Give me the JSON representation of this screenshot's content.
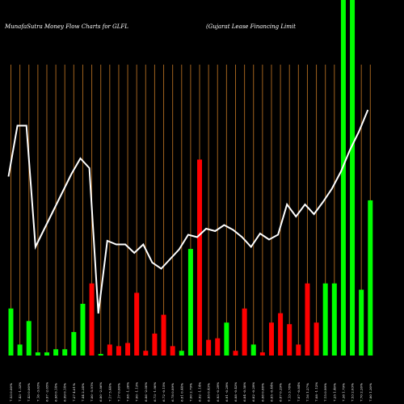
{
  "header": {
    "title_left": "MunafaSutra  Money Flow  Charts for GLFL",
    "title_right": "(Gujarat Lease    Financing Limit"
  },
  "colors": {
    "background": "#000000",
    "gridline": "#a0621e",
    "up": "#00ff00",
    "down": "#ff0000",
    "line": "#ffffff",
    "text": "#ffffff"
  },
  "chart_data": {
    "type": "bar",
    "title": "MunafaSutra  Money Flow  Charts for GLFL",
    "categories": [
      "7.53 0.00%",
      "7.43 -1.33%",
      "7.43 0.00%",
      "7.16 -3.63%",
      "6.97 -2.65%",
      "6.98 0.14%",
      "6.99 0.14%",
      "7.27 4.01%",
      "7.44 2.34%",
      "7.00 -5.91%",
      "6.80 -2.86%",
      "7.17 5.44%",
      "7.17 0.00%",
      "7.08 -1.26%",
      "7.00 -1.13%",
      "6.86 -2.00%",
      "6.73 -1.90%",
      "6.72 -0.15%",
      "6.78 0.89%",
      "6.81 0.44%",
      "7.00 2.79%",
      "6.92 -1.14%",
      "6.95 0.43%",
      "6.93 -0.29%",
      "6.91 -0.29%",
      "6.88 -0.43%",
      "6.84 -0.58%",
      "6.82 -0.29%",
      "6.88 0.88%",
      "6.85 -0.44%",
      "6.87 0.29%",
      "7.13 3.78%",
      "7.07 -0.84%",
      "7.16 1.27%",
      "7.08 -1.12%",
      "7.15 0.99%",
      "7.25 1.40%",
      "7.38 1.79%",
      "7.53 2.03%",
      "7.70 2.26%",
      "7.80 1.30%"
    ],
    "series": [
      {
        "values": [
          30,
          7,
          22,
          2,
          2,
          4,
          4,
          15,
          33,
          46,
          1,
          7,
          6,
          8,
          40,
          3,
          14,
          26,
          6,
          3,
          68,
          125,
          10,
          11,
          21,
          3,
          30,
          7,
          2,
          21,
          27,
          20,
          7,
          46,
          21,
          46,
          46,
          240,
          240,
          42,
          99
        ],
        "direction": [
          "up",
          "up",
          "up",
          "up",
          "up",
          "up",
          "up",
          "up",
          "up",
          "down",
          "up",
          "down",
          "down",
          "down",
          "down",
          "down",
          "down",
          "down",
          "down",
          "up",
          "up",
          "down",
          "down",
          "down",
          "up",
          "down",
          "down",
          "up",
          "down",
          "down",
          "down",
          "down",
          "down",
          "down",
          "down",
          "up",
          "up",
          "up",
          "up",
          "up",
          "up"
        ]
      },
      {
        "values": [
          7.53,
          7.95,
          7.95,
          6.95,
          7.1,
          7.25,
          7.4,
          7.55,
          7.68,
          7.6,
          6.4,
          7.0,
          6.97,
          6.97,
          6.9,
          6.97,
          6.82,
          6.77,
          6.85,
          6.93,
          7.05,
          7.03,
          7.1,
          7.08,
          7.13,
          7.09,
          7.03,
          6.95,
          7.06,
          7.01,
          7.05,
          7.3,
          7.2,
          7.3,
          7.22,
          7.32,
          7.43,
          7.57,
          7.75,
          7.9,
          8.08
        ]
      }
    ],
    "grid": true,
    "ylabel": "",
    "xlabel": ""
  }
}
